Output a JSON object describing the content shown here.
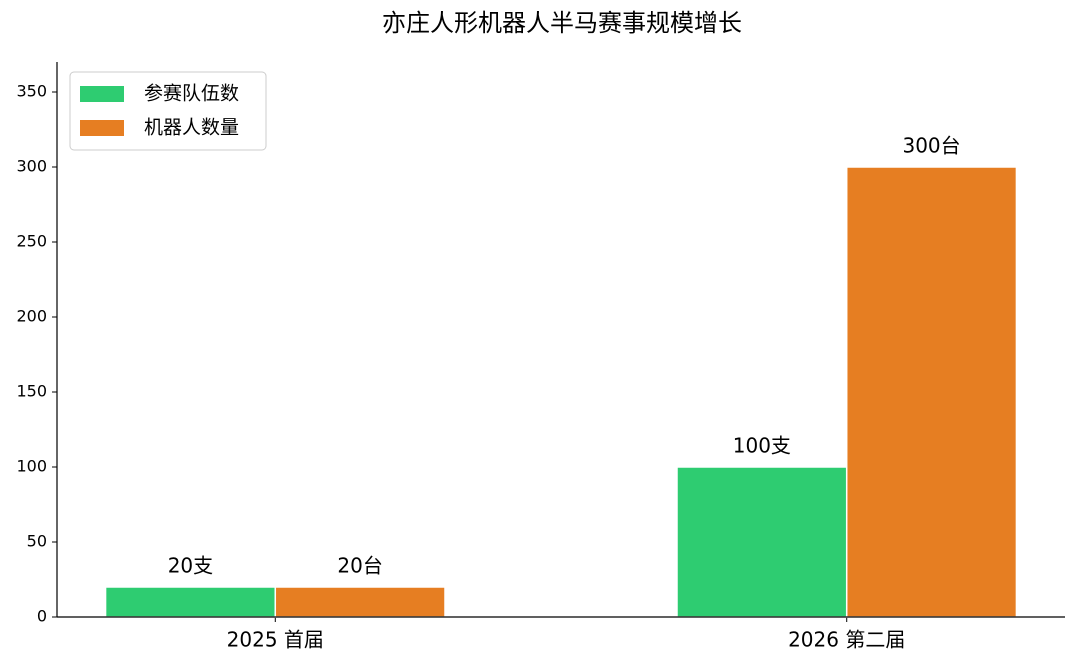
{
  "chart_data": {
    "type": "bar",
    "title": "亦庄人形机器人半马赛事规模增长",
    "categories": [
      "2025 首届",
      "2026 第二届"
    ],
    "series": [
      {
        "name": "参赛队伍数",
        "color": "#2ecc71",
        "values": [
          20,
          100
        ],
        "value_labels": [
          "20支",
          "100支"
        ]
      },
      {
        "name": "机器人数量",
        "color": "#e67e22",
        "values": [
          20,
          300
        ],
        "value_labels": [
          "20台",
          "300台"
        ]
      }
    ],
    "ylim": [
      0,
      370
    ],
    "yticks": [
      0,
      50,
      100,
      150,
      200,
      250,
      300,
      350
    ],
    "grid": false,
    "legend": "upper-left"
  }
}
